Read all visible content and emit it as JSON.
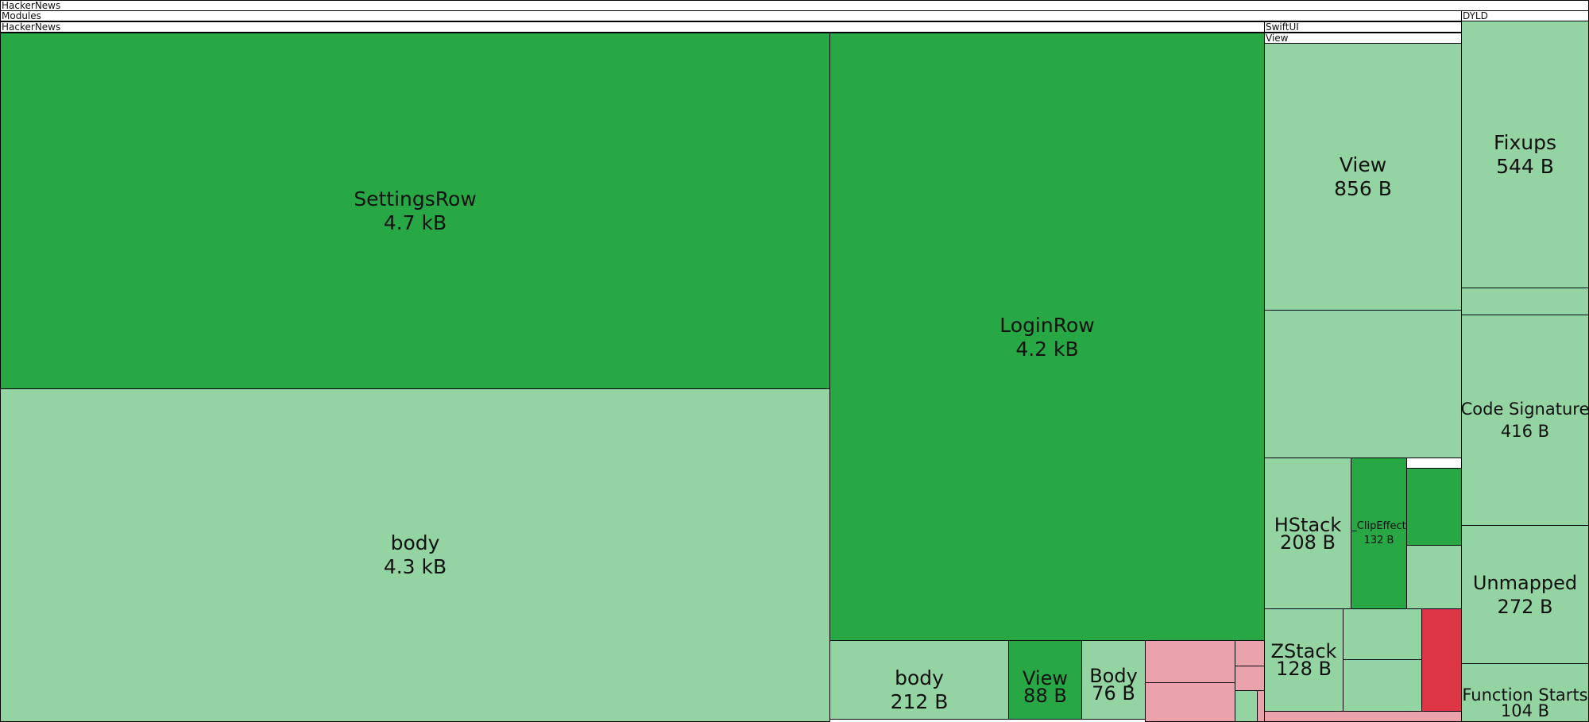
{
  "headers": {
    "root": "HackerNews",
    "modules": "Modules",
    "module_hn": "HackerNews",
    "swiftui": "SwiftUI",
    "swiftui_view": "View",
    "dyld": "DYLD"
  },
  "blocks": {
    "settings_row": {
      "name": "SettingsRow",
      "size": "4.7 kB"
    },
    "settings_body": {
      "name": "body",
      "size": "4.3 kB"
    },
    "login_row": {
      "name": "LoginRow",
      "size": "4.2 kB"
    },
    "login_body": {
      "name": "body",
      "size": "212 B"
    },
    "login_view": {
      "name": "View",
      "size": "88 B"
    },
    "login_body_type": {
      "name": "Body",
      "size": "76 B"
    },
    "swiftui_view": {
      "name": "View",
      "size": "856 B"
    },
    "hstack": {
      "name": "HStack",
      "size": "208 B"
    },
    "clip_effect": {
      "name": "_ClipEffect",
      "size": "132 B"
    },
    "zstack": {
      "name": "ZStack",
      "size": "128 B"
    },
    "fixups": {
      "name": "Fixups",
      "size": "544 B"
    },
    "code_signature": {
      "name": "Code Signature",
      "size": "416 B"
    },
    "unmapped": {
      "name": "Unmapped",
      "size": "272 B"
    },
    "function_starts": {
      "name": "Function Starts",
      "size": "104 B"
    }
  },
  "colors": {
    "dark_green": "#28a745",
    "light_green": "#94d3a2",
    "pink": "#eaa3aa",
    "red": "#dc3545"
  }
}
